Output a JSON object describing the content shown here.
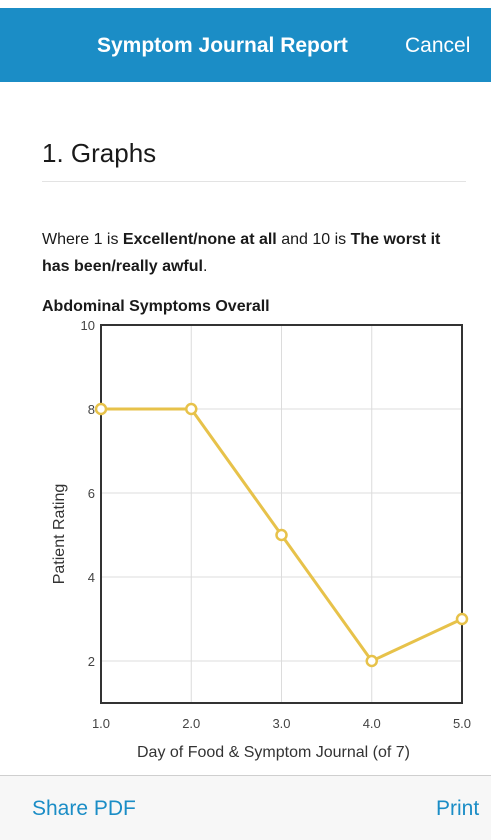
{
  "header": {
    "title": "Symptom Journal Report",
    "cancel_label": "Cancel"
  },
  "section": {
    "heading": "1. Graphs"
  },
  "legend": {
    "prefix": "Where 1 is ",
    "best_label": "Excellent/none at all",
    "middle": " and 10 is ",
    "worst_label": "The worst it has been/really awful",
    "suffix": "."
  },
  "chart_data": {
    "type": "line",
    "title": "Abdominal Symptoms Overall",
    "xlabel": "Day of Food & Symptom Journal (of 7)",
    "ylabel": "Patient Rating",
    "x": [
      1,
      2,
      3,
      4,
      5
    ],
    "series": [
      {
        "values": [
          8,
          8,
          5,
          2,
          3
        ]
      }
    ],
    "xticks": [
      "1.0",
      "2.0",
      "3.0",
      "4.0",
      "5.0"
    ],
    "yticks": [
      "2",
      "4",
      "6",
      "8",
      "10"
    ],
    "xlim": [
      1,
      5
    ],
    "ylim": [
      1,
      10
    ],
    "grid": true,
    "line_color": "#e7c24a"
  },
  "footer": {
    "share_label": "Share PDF",
    "print_label": "Print"
  }
}
